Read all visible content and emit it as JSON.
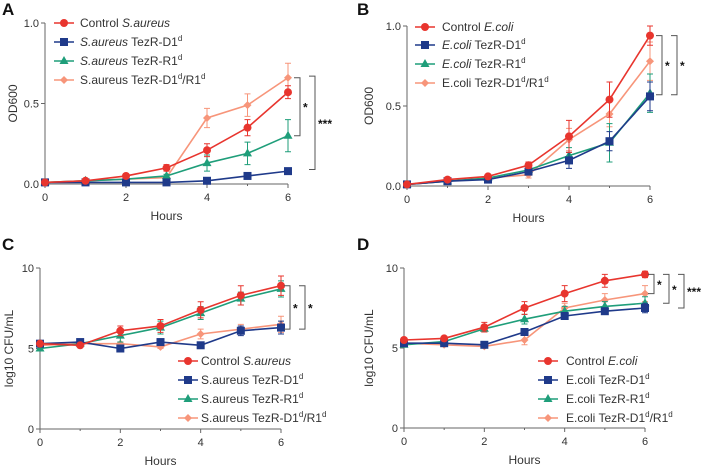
{
  "chart_data": [
    {
      "panel": "A",
      "type": "line",
      "xlabel": "Hours",
      "ylabel": "OD600",
      "xlim": [
        0,
        6
      ],
      "ylim": [
        0,
        1
      ],
      "xticks": [
        0,
        2,
        4,
        6
      ],
      "yticks": [
        0,
        0.5,
        1
      ],
      "ytick_labels": [
        "0.0",
        "0.5",
        "1.0"
      ],
      "legend_placement": "top-left",
      "x": [
        0,
        1,
        2,
        3,
        4,
        5,
        6
      ],
      "series": [
        {
          "key": "control",
          "name": [
            {
              "t": "Control "
            },
            {
              "t": "S.aureus",
              "s": "i"
            }
          ],
          "color": "#e8352e",
          "marker": "circle",
          "values": [
            0.01,
            0.02,
            0.05,
            0.1,
            0.21,
            0.35,
            0.57
          ],
          "errors": [
            0.005,
            0.01,
            0.01,
            0.02,
            0.04,
            0.05,
            0.04
          ]
        },
        {
          "key": "d1",
          "name": [
            {
              "t": "S.aureus",
              "s": "i"
            },
            {
              "t": " TezR-D1"
            },
            {
              "t": "d",
              "s": "sup"
            }
          ],
          "color": "#1f3a8a",
          "marker": "square",
          "values": [
            0.01,
            0.01,
            0.01,
            0.01,
            0.02,
            0.05,
            0.08
          ],
          "errors": [
            0.005,
            0.005,
            0.005,
            0.005,
            0.005,
            0.01,
            0.01
          ]
        },
        {
          "key": "r1",
          "name": [
            {
              "t": "S.aureus",
              "s": "i"
            },
            {
              "t": " TezR-R1"
            },
            {
              "t": "d",
              "s": "sup"
            }
          ],
          "color": "#1f9e7a",
          "marker": "triangle",
          "values": [
            0.01,
            0.02,
            0.03,
            0.05,
            0.13,
            0.19,
            0.3
          ],
          "errors": [
            0.005,
            0.005,
            0.01,
            0.01,
            0.05,
            0.07,
            0.1
          ]
        },
        {
          "key": "d1r1",
          "name": [
            {
              "t": "S.aureus TezR-D1"
            },
            {
              "t": "d",
              "s": "sup"
            },
            {
              "t": "/R1"
            },
            {
              "t": "d",
              "s": "sup"
            }
          ],
          "color": "#f7957a",
          "marker": "diamond",
          "values": [
            0.01,
            0.02,
            0.03,
            0.04,
            0.41,
            0.49,
            0.66
          ],
          "errors": [
            0.005,
            0.005,
            0.01,
            0.02,
            0.06,
            0.07,
            0.09
          ]
        }
      ],
      "significance": [
        {
          "from": 0.66,
          "to": 0.3,
          "label": "*"
        },
        {
          "from": 0.67,
          "to": 0.09,
          "label": "***"
        }
      ]
    },
    {
      "panel": "B",
      "type": "line",
      "xlabel": "Hours",
      "ylabel": "OD600",
      "xlim": [
        0,
        6
      ],
      "ylim": [
        0,
        1
      ],
      "xticks": [
        0,
        2,
        4,
        6
      ],
      "yticks": [
        0,
        0.5,
        1
      ],
      "ytick_labels": [
        "0.0",
        "0.5",
        "1.0"
      ],
      "legend_placement": "top-left",
      "x": [
        0,
        1,
        2,
        3,
        4,
        5,
        6
      ],
      "series": [
        {
          "key": "control",
          "name": [
            {
              "t": "Control "
            },
            {
              "t": "E.coli",
              "s": "i"
            }
          ],
          "color": "#e8352e",
          "marker": "circle",
          "values": [
            0.01,
            0.04,
            0.06,
            0.13,
            0.31,
            0.54,
            0.94
          ],
          "errors": [
            0.005,
            0.01,
            0.01,
            0.02,
            0.1,
            0.11,
            0.06
          ]
        },
        {
          "key": "d1",
          "name": [
            {
              "t": "E.coli",
              "s": "i"
            },
            {
              "t": " TezR-D1"
            },
            {
              "t": "d",
              "s": "sup"
            }
          ],
          "color": "#1f3a8a",
          "marker": "square",
          "values": [
            0.01,
            0.03,
            0.04,
            0.09,
            0.16,
            0.28,
            0.56
          ],
          "errors": [
            0.005,
            0.01,
            0.01,
            0.02,
            0.05,
            0.06,
            0.09
          ]
        },
        {
          "key": "r1",
          "name": [
            {
              "t": "E.coli",
              "s": "i"
            },
            {
              "t": " TezR-R1"
            },
            {
              "t": "d",
              "s": "sup"
            }
          ],
          "color": "#1f9e7a",
          "marker": "triangle",
          "values": [
            0.01,
            0.03,
            0.05,
            0.1,
            0.19,
            0.27,
            0.58
          ],
          "errors": [
            0.005,
            0.01,
            0.01,
            0.02,
            0.05,
            0.12,
            0.12
          ]
        },
        {
          "key": "d1r1",
          "name": [
            {
              "t": "E.coli TezR-D1"
            },
            {
              "t": "d",
              "s": "sup"
            },
            {
              "t": "/R1"
            },
            {
              "t": "d",
              "s": "sup"
            }
          ],
          "color": "#f7957a",
          "marker": "diamond",
          "values": [
            0.01,
            0.03,
            0.05,
            0.07,
            0.29,
            0.45,
            0.78
          ],
          "errors": [
            0.005,
            0.01,
            0.01,
            0.02,
            0.07,
            0.08,
            0.12
          ]
        }
      ],
      "significance": [
        {
          "from": 0.94,
          "to": 0.57,
          "label": "*"
        },
        {
          "from": 0.94,
          "to": 0.57,
          "label": "*"
        }
      ]
    },
    {
      "panel": "C",
      "type": "line",
      "xlabel": "Hours",
      "ylabel": "log10 CFU/mL",
      "xlim": [
        0,
        6
      ],
      "ylim": [
        0,
        10
      ],
      "xticks": [
        0,
        2,
        4,
        6
      ],
      "yticks": [
        0,
        5,
        10
      ],
      "ytick_labels": [
        "0",
        "5",
        "10"
      ],
      "legend_placement": "bottom-right",
      "x": [
        0,
        1,
        2,
        3,
        4,
        5,
        6
      ],
      "series": [
        {
          "key": "control",
          "name": [
            {
              "t": "Control "
            },
            {
              "t": "S.aureus",
              "s": "i"
            }
          ],
          "color": "#e8352e",
          "marker": "circle",
          "values": [
            5.3,
            5.2,
            6.1,
            6.4,
            7.4,
            8.3,
            8.9
          ],
          "errors": [
            0.1,
            0.1,
            0.3,
            0.4,
            0.5,
            0.6,
            0.6
          ]
        },
        {
          "key": "d1",
          "name": [
            {
              "t": "S.aureus TezR-D1"
            },
            {
              "t": "d",
              "s": "sup"
            }
          ],
          "color": "#1f3a8a",
          "marker": "square",
          "values": [
            5.3,
            5.4,
            5.0,
            5.4,
            5.2,
            6.1,
            6.3
          ],
          "errors": [
            0.1,
            0.1,
            0.1,
            0.1,
            0.1,
            0.3,
            0.4
          ]
        },
        {
          "key": "r1",
          "name": [
            {
              "t": "S.aureus TezR-R1"
            },
            {
              "t": "d",
              "s": "sup"
            }
          ],
          "color": "#1f9e7a",
          "marker": "triangle",
          "values": [
            5.0,
            5.3,
            5.8,
            6.3,
            7.2,
            8.1,
            8.7
          ],
          "errors": [
            0.1,
            0.1,
            0.4,
            0.4,
            0.4,
            0.4,
            0.5
          ]
        },
        {
          "key": "d1r1",
          "name": [
            {
              "t": "S.aureus TezR-D1"
            },
            {
              "t": "d",
              "s": "sup"
            },
            {
              "t": "/R1"
            },
            {
              "t": "d",
              "s": "sup"
            }
          ],
          "color": "#f7957a",
          "marker": "diamond",
          "values": [
            5.2,
            5.3,
            5.3,
            5.1,
            5.9,
            6.2,
            6.5
          ],
          "errors": [
            0.1,
            0.1,
            0.1,
            0.1,
            0.3,
            0.3,
            0.5
          ]
        }
      ],
      "significance": [
        {
          "from": 8.9,
          "to": 6.2,
          "label": "*"
        },
        {
          "from": 8.9,
          "to": 6.2,
          "label": "*"
        }
      ]
    },
    {
      "panel": "D",
      "type": "line",
      "xlabel": "Hours",
      "ylabel": "log10 CFU/mL",
      "xlim": [
        0,
        6
      ],
      "ylim": [
        0,
        10
      ],
      "xticks": [
        0,
        2,
        4,
        6
      ],
      "yticks": [
        0,
        5,
        10
      ],
      "ytick_labels": [
        "0",
        "5",
        "10"
      ],
      "legend_placement": "bottom-right",
      "x": [
        0,
        1,
        2,
        3,
        4,
        5,
        6
      ],
      "series": [
        {
          "key": "control",
          "name": [
            {
              "t": "Control "
            },
            {
              "t": "E.coli",
              "s": "i"
            }
          ],
          "color": "#e8352e",
          "marker": "circle",
          "values": [
            5.5,
            5.6,
            6.3,
            7.5,
            8.4,
            9.2,
            9.6
          ],
          "errors": [
            0.1,
            0.1,
            0.3,
            0.4,
            0.5,
            0.4,
            0.2
          ]
        },
        {
          "key": "d1",
          "name": [
            {
              "t": "E.coli TezR-D1"
            },
            {
              "t": "d",
              "s": "sup"
            }
          ],
          "color": "#1f3a8a",
          "marker": "square",
          "values": [
            5.3,
            5.3,
            5.2,
            6.0,
            7.0,
            7.3,
            7.5
          ],
          "errors": [
            0.1,
            0.1,
            0.1,
            0.2,
            0.2,
            0.2,
            0.3
          ]
        },
        {
          "key": "r1",
          "name": [
            {
              "t": "E.coli TezR-R1"
            },
            {
              "t": "d",
              "s": "sup"
            }
          ],
          "color": "#1f9e7a",
          "marker": "triangle",
          "values": [
            5.2,
            5.4,
            6.2,
            6.8,
            7.3,
            7.6,
            7.8
          ],
          "errors": [
            0.1,
            0.1,
            0.2,
            0.3,
            0.3,
            0.3,
            0.4
          ]
        },
        {
          "key": "d1r1",
          "name": [
            {
              "t": "E.coli TezR-D1"
            },
            {
              "t": "d",
              "s": "sup"
            },
            {
              "t": "/R1"
            },
            {
              "t": "d",
              "s": "sup"
            }
          ],
          "color": "#f7957a",
          "marker": "diamond",
          "values": [
            5.3,
            5.2,
            5.1,
            5.5,
            7.5,
            8.0,
            8.4
          ],
          "errors": [
            0.1,
            0.1,
            0.1,
            0.3,
            0.3,
            0.4,
            0.5
          ]
        }
      ],
      "significance": [
        {
          "from": 9.6,
          "to": 8.4,
          "label": "*"
        },
        {
          "from": 9.6,
          "to": 7.8,
          "label": "*"
        },
        {
          "from": 9.6,
          "to": 7.5,
          "label": "***"
        }
      ]
    }
  ]
}
